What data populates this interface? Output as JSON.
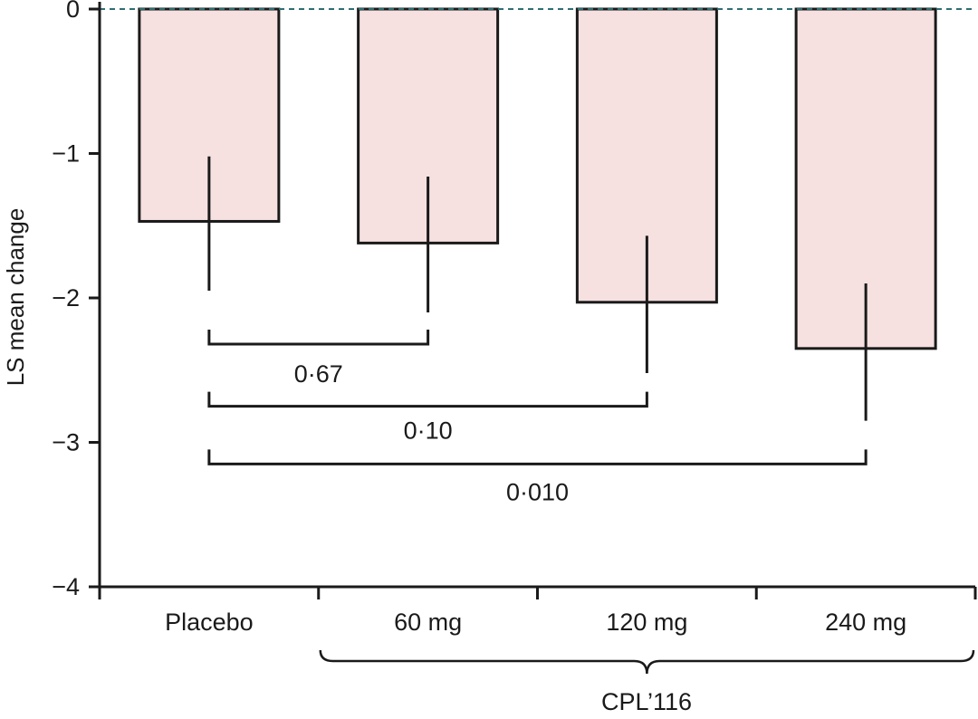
{
  "chart_data": {
    "type": "bar",
    "title": "",
    "xlabel": "",
    "ylabel": "LS mean change",
    "ylim": [
      -4,
      0
    ],
    "yticks": [
      0,
      -1,
      -2,
      -3,
      -4
    ],
    "ytick_labels": [
      "0",
      "−1",
      "−2",
      "−3",
      "−4"
    ],
    "categories": [
      "Placebo",
      "60 mg",
      "120 mg",
      "240 mg"
    ],
    "values": [
      -1.47,
      -1.62,
      -2.03,
      -2.35
    ],
    "error_low": [
      -1.95,
      -2.1,
      -2.52,
      -2.85
    ],
    "error_high": [
      -1.02,
      -1.16,
      -1.57,
      -1.9
    ],
    "group_label": "CPL’116",
    "group_categories": [
      "60 mg",
      "120 mg",
      "240 mg"
    ],
    "comparisons": [
      {
        "from": "Placebo",
        "to": "60 mg",
        "p_label": "0·67",
        "level": -2.32
      },
      {
        "from": "Placebo",
        "to": "120 mg",
        "p_label": "0·10",
        "level": -2.75
      },
      {
        "from": "Placebo",
        "to": "240 mg",
        "p_label": "0·010",
        "level": -3.15
      }
    ],
    "colors": {
      "bar_fill": "#f6e0e0",
      "bar_stroke": "#1a1a1a",
      "zero_line": "#2e6f72",
      "axis": "#1a1a1a"
    }
  }
}
